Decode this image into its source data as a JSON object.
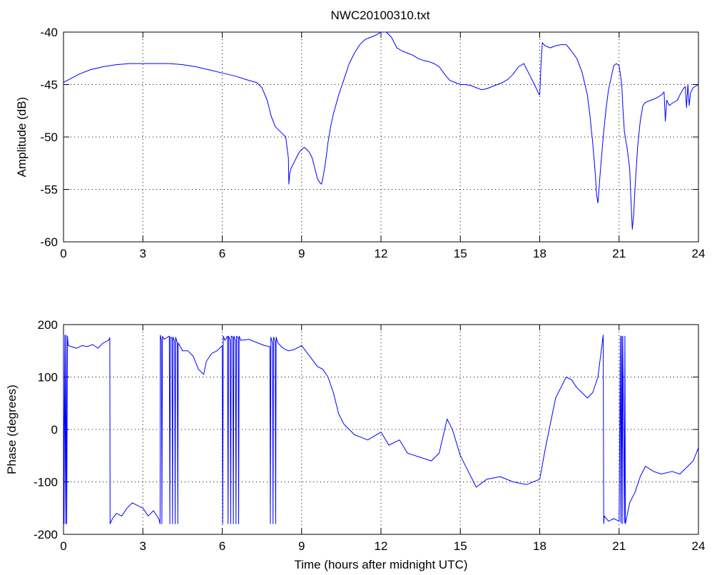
{
  "figure": {
    "title": "NWC20100310.txt"
  },
  "chart_data": [
    {
      "type": "line",
      "title": "NWC20100310.txt",
      "xlabel": "",
      "ylabel": "Amplitude (dB)",
      "xlim": [
        0,
        24
      ],
      "ylim": [
        -60,
        -40
      ],
      "xticks": [
        0,
        3,
        6,
        9,
        12,
        15,
        18,
        21,
        24
      ],
      "yticks": [
        -60,
        -55,
        -50,
        -45,
        -40
      ],
      "grid": true,
      "color": "#0000ff",
      "series": [
        {
          "x": [
            0,
            0.3,
            0.6,
            1.0,
            1.5,
            2.0,
            2.5,
            3.0,
            3.5,
            4.0,
            4.5,
            5.0,
            5.5,
            6.0,
            6.5,
            7.0,
            7.3,
            7.5,
            7.7,
            7.85,
            8.0,
            8.2,
            8.4,
            8.5,
            8.52,
            8.55,
            8.6,
            8.7,
            8.8,
            8.9,
            9.0,
            9.1,
            9.2,
            9.3,
            9.4,
            9.5,
            9.6,
            9.7,
            9.75,
            9.8,
            9.9,
            10.0,
            10.1,
            10.2,
            10.4,
            10.6,
            10.8,
            11.0,
            11.2,
            11.4,
            11.6,
            11.8,
            12.0,
            12.2,
            12.4,
            12.6,
            12.8,
            13.0,
            13.2,
            13.4,
            13.6,
            13.8,
            14.0,
            14.2,
            14.4,
            14.6,
            14.8,
            15.0,
            15.2,
            15.4,
            15.6,
            15.8,
            16.0,
            16.2,
            16.4,
            16.6,
            16.8,
            17.0,
            17.2,
            17.4,
            17.6,
            17.8,
            17.95,
            18.0,
            18.05,
            18.1,
            18.2,
            18.4,
            18.6,
            18.8,
            19.0,
            19.2,
            19.4,
            19.6,
            19.8,
            19.9,
            20.0,
            20.1,
            20.15,
            20.2,
            20.3,
            20.4,
            20.5,
            20.6,
            20.8,
            20.9,
            21.0,
            21.1,
            21.15,
            21.2,
            21.3,
            21.4,
            21.45,
            21.5,
            21.55,
            21.6,
            21.7,
            21.8,
            21.9,
            22.0,
            22.2,
            22.4,
            22.6,
            22.7,
            22.75,
            22.8,
            22.9,
            23.0,
            23.2,
            23.4,
            23.5,
            23.55,
            23.6,
            23.65,
            23.7,
            23.8,
            24.0
          ],
          "y": [
            -44.8,
            -44.4,
            -44.0,
            -43.6,
            -43.3,
            -43.1,
            -43.0,
            -43.0,
            -43.0,
            -43.0,
            -43.1,
            -43.3,
            -43.6,
            -43.9,
            -44.2,
            -44.6,
            -44.8,
            -45.3,
            -46.5,
            -48.0,
            -49.0,
            -49.5,
            -50.0,
            -52.0,
            -54.5,
            -53.5,
            -53.0,
            -52.5,
            -52.0,
            -51.5,
            -51.2,
            -51.0,
            -51.2,
            -51.5,
            -52.0,
            -53.0,
            -54.0,
            -54.4,
            -54.5,
            -54.0,
            -52.5,
            -50.5,
            -49.0,
            -47.8,
            -46.0,
            -44.5,
            -43.0,
            -42.0,
            -41.2,
            -40.7,
            -40.5,
            -40.3,
            -40.0,
            -40.0,
            -40.5,
            -41.5,
            -41.8,
            -42.0,
            -42.2,
            -42.5,
            -42.7,
            -42.8,
            -43.0,
            -43.3,
            -44.0,
            -44.6,
            -44.8,
            -45.0,
            -45.0,
            -45.1,
            -45.3,
            -45.5,
            -45.4,
            -45.2,
            -45.0,
            -44.8,
            -44.5,
            -44.0,
            -43.3,
            -43.0,
            -44.0,
            -45.0,
            -45.8,
            -46.0,
            -43.0,
            -41.0,
            -41.3,
            -41.5,
            -41.3,
            -41.2,
            -41.2,
            -41.8,
            -42.5,
            -43.8,
            -46.0,
            -48.0,
            -50.5,
            -53.5,
            -55.5,
            -56.3,
            -53.0,
            -50.0,
            -47.5,
            -45.5,
            -43.2,
            -43.0,
            -43.2,
            -45.0,
            -47.5,
            -49.5,
            -51.0,
            -53.0,
            -56.0,
            -58.8,
            -57.5,
            -55.0,
            -51.0,
            -48.5,
            -47.0,
            -46.7,
            -46.5,
            -46.3,
            -46.0,
            -45.7,
            -48.5,
            -46.5,
            -47.0,
            -46.8,
            -46.5,
            -45.5,
            -45.2,
            -47.2,
            -45.0,
            -47.0,
            -45.8,
            -45.3,
            -45.0
          ]
        }
      ]
    },
    {
      "type": "line",
      "title": "",
      "xlabel": "Time (hours after midnight UTC)",
      "ylabel": "Phase (degrees)",
      "xlim": [
        0,
        24
      ],
      "ylim": [
        -200,
        200
      ],
      "xticks": [
        0,
        3,
        6,
        9,
        12,
        15,
        18,
        21,
        24
      ],
      "yticks": [
        -200,
        -100,
        0,
        100,
        200
      ],
      "grid": true,
      "color": "#0000ff",
      "series": [
        {
          "x": [
            0,
            0.02,
            0.05,
            0.08,
            0.1,
            0.12,
            0.15,
            0.18,
            0.3,
            0.5,
            0.7,
            0.9,
            1.1,
            1.3,
            1.5,
            1.7,
            1.75,
            1.76,
            1.85,
            2.0,
            2.2,
            2.4,
            2.6,
            2.8,
            3.0,
            3.2,
            3.4,
            3.6,
            3.65,
            3.66,
            3.7,
            3.72,
            3.74,
            3.8,
            3.9,
            4.0,
            4.02,
            4.04,
            4.1,
            4.12,
            4.14,
            4.2,
            4.22,
            4.24,
            4.3,
            4.32,
            4.34,
            4.5,
            4.7,
            4.9,
            5.1,
            5.3,
            5.4,
            5.6,
            5.8,
            6.0,
            6.02,
            6.04,
            6.1,
            6.2,
            6.22,
            6.24,
            6.3,
            6.32,
            6.34,
            6.4,
            6.42,
            6.44,
            6.5,
            6.52,
            6.54,
            6.6,
            6.62,
            6.64,
            6.7,
            7.0,
            7.3,
            7.6,
            7.8,
            7.82,
            7.84,
            7.9,
            7.92,
            7.94,
            8.0,
            8.02,
            8.04,
            8.1,
            8.3,
            8.5,
            8.7,
            9.0,
            9.3,
            9.6,
            9.8,
            10.0,
            10.2,
            10.4,
            10.6,
            10.8,
            11.0,
            11.5,
            12.0,
            12.3,
            12.7,
            13.0,
            13.3,
            13.6,
            13.9,
            14.2,
            14.5,
            14.7,
            15.0,
            15.3,
            15.6,
            16.0,
            16.5,
            17.0,
            17.5,
            18.0,
            18.2,
            18.4,
            18.6,
            18.8,
            19.0,
            19.2,
            19.4,
            19.6,
            19.8,
            20.0,
            20.2,
            20.4,
            20.42,
            20.44,
            20.6,
            20.8,
            21.0,
            21.05,
            21.07,
            21.1,
            21.12,
            21.14,
            21.2,
            21.22,
            21.24,
            21.4,
            21.6,
            21.8,
            22.0,
            22.3,
            22.6,
            23.0,
            23.3,
            23.6,
            23.8,
            24.0
          ],
          "y": [
            180,
            -180,
            180,
            -180,
            180,
            -180,
            178,
            160,
            158,
            155,
            160,
            158,
            162,
            155,
            165,
            170,
            175,
            -180,
            -170,
            -160,
            -165,
            -150,
            -140,
            -145,
            -150,
            -165,
            -155,
            -170,
            -180,
            180,
            170,
            -180,
            178,
            172,
            175,
            178,
            -180,
            176,
            175,
            -180,
            176,
            168,
            -180,
            176,
            165,
            -180,
            165,
            150,
            150,
            140,
            115,
            105,
            130,
            145,
            150,
            160,
            -180,
            178,
            170,
            178,
            -180,
            178,
            170,
            -180,
            178,
            176,
            -180,
            178,
            170,
            -180,
            178,
            175,
            -180,
            178,
            170,
            172,
            166,
            160,
            158,
            -180,
            176,
            165,
            -180,
            176,
            168,
            -180,
            176,
            165,
            155,
            150,
            152,
            160,
            140,
            120,
            115,
            100,
            70,
            30,
            10,
            0,
            -10,
            -20,
            -5,
            -30,
            -20,
            -45,
            -50,
            -55,
            -60,
            -45,
            20,
            0,
            -50,
            -80,
            -110,
            -95,
            -90,
            -100,
            -105,
            -95,
            -40,
            10,
            60,
            80,
            100,
            95,
            80,
            70,
            60,
            70,
            100,
            180,
            -180,
            -165,
            -175,
            -170,
            -175,
            178,
            -178,
            178,
            -180,
            178,
            -178,
            178,
            -180,
            -140,
            -120,
            -90,
            -70,
            -80,
            -85,
            -80,
            -85,
            -70,
            -60,
            -35
          ]
        }
      ]
    }
  ]
}
